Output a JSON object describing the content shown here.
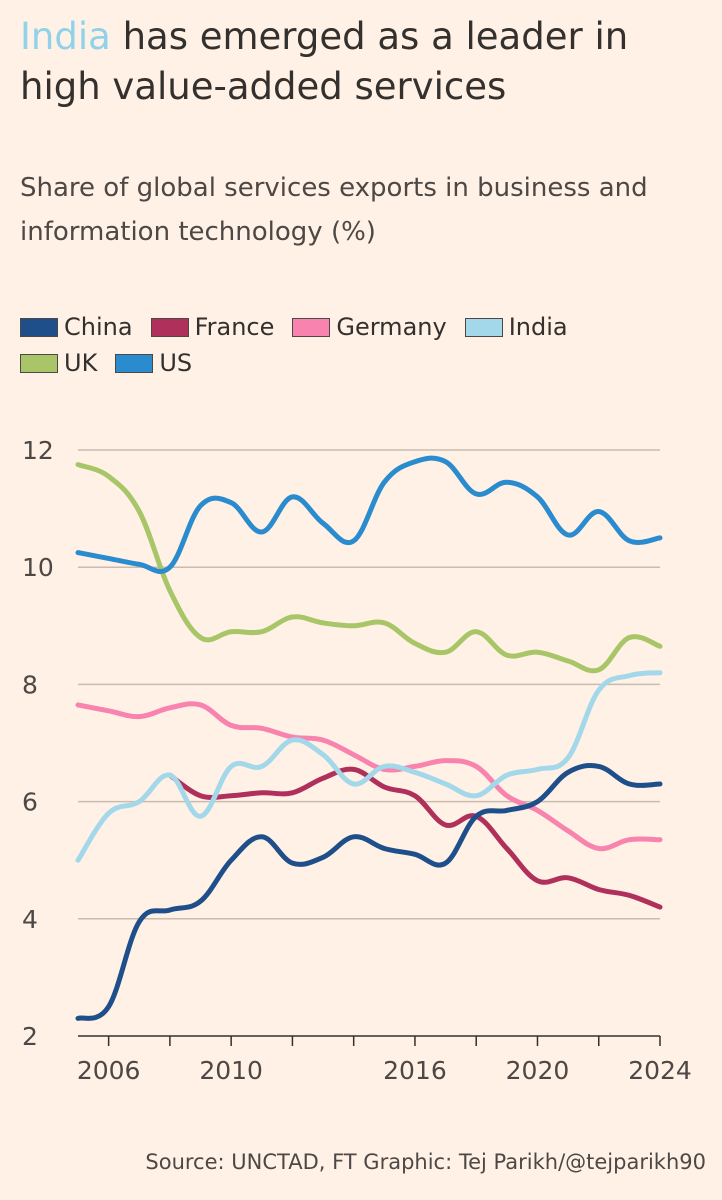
{
  "title": {
    "highlight": "India",
    "rest": " has emerged as a leader in high value-added services"
  },
  "subtitle": "Share of global services exports in business and information technology (%)",
  "source": "Source: UNCTAD, FT Graphic: Tej Parikh/@tejparikh90",
  "colors": {
    "background": "#fff1e5",
    "title_highlight": "#8fd2ea",
    "grid": "#c8bcb1",
    "axis": "#33302e"
  },
  "chart_data": {
    "type": "line",
    "x": [
      2005,
      2006,
      2007,
      2008,
      2009,
      2010,
      2011,
      2012,
      2013,
      2014,
      2015,
      2016,
      2017,
      2018,
      2019,
      2020,
      2021,
      2022,
      2023,
      2024
    ],
    "ylim": [
      2,
      12
    ],
    "yticks": [
      2,
      4,
      6,
      8,
      10,
      12
    ],
    "xticks": [
      2006,
      2010,
      2016,
      2020,
      2024
    ],
    "xlabel": "",
    "ylabel": "",
    "grid": true,
    "legend_position": "top",
    "series": [
      {
        "name": "China",
        "color": "#1f4f8a",
        "values": [
          2.3,
          2.5,
          3.95,
          4.15,
          4.3,
          5.0,
          5.4,
          4.95,
          5.05,
          5.4,
          5.2,
          5.1,
          4.95,
          5.75,
          5.85,
          6.0,
          6.5,
          6.6,
          6.3,
          6.3
        ]
      },
      {
        "name": "France",
        "color": "#b0305c",
        "values": [
          null,
          null,
          null,
          6.45,
          6.1,
          6.1,
          6.15,
          6.15,
          6.4,
          6.55,
          6.25,
          6.1,
          5.6,
          5.75,
          5.2,
          4.65,
          4.7,
          4.5,
          4.4,
          4.2
        ]
      },
      {
        "name": "Germany",
        "color": "#f783ae",
        "values": [
          7.65,
          7.55,
          7.45,
          7.6,
          7.65,
          7.3,
          7.25,
          7.1,
          7.05,
          6.8,
          6.55,
          6.6,
          6.7,
          6.6,
          6.1,
          5.85,
          5.5,
          5.2,
          5.35,
          5.35
        ]
      },
      {
        "name": "India",
        "color": "#a3d8ea",
        "values": [
          5.0,
          5.8,
          6.0,
          6.45,
          5.75,
          6.6,
          6.6,
          7.05,
          6.8,
          6.3,
          6.6,
          6.5,
          6.3,
          6.1,
          6.45,
          6.55,
          6.75,
          7.9,
          8.15,
          8.2
        ]
      },
      {
        "name": "UK",
        "color": "#a8c668",
        "values": [
          11.75,
          11.55,
          10.95,
          9.6,
          8.8,
          8.9,
          8.9,
          9.15,
          9.05,
          9.0,
          9.05,
          8.7,
          8.55,
          8.9,
          8.5,
          8.55,
          8.4,
          8.25,
          8.8,
          8.65
        ]
      },
      {
        "name": "US",
        "color": "#2a8bce",
        "values": [
          10.25,
          10.15,
          10.05,
          10.0,
          11.05,
          11.1,
          10.6,
          11.2,
          10.75,
          10.45,
          11.45,
          11.8,
          11.8,
          11.25,
          11.45,
          11.2,
          10.55,
          10.95,
          10.45,
          10.5
        ]
      }
    ]
  }
}
